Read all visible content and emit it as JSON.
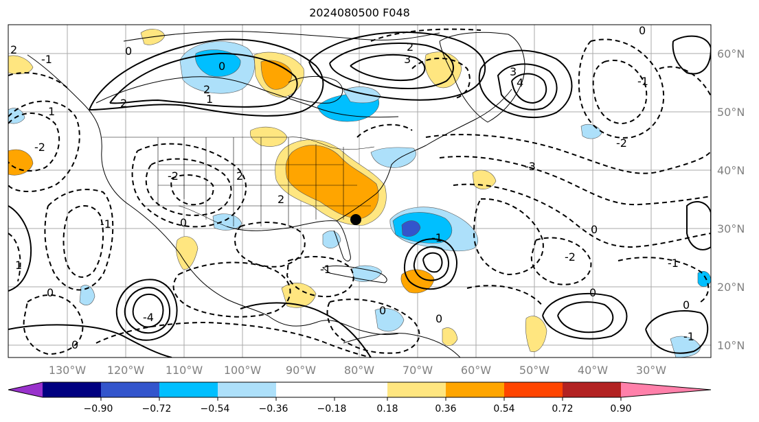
{
  "title": "2024080500 F048",
  "latitude_labels": [
    "60°N",
    "50°N",
    "40°N",
    "30°N",
    "20°N",
    "10°N"
  ],
  "longitude_labels": [
    "130°W",
    "120°W",
    "110°W",
    "100°W",
    "90°W",
    "80°W",
    "70°W",
    "60°W",
    "50°W",
    "40°W",
    "30°W"
  ],
  "colorbar": {
    "tick_labels": [
      "−0.90",
      "−0.72",
      "−0.54",
      "−0.36",
      "−0.18",
      "0.18",
      "0.36",
      "0.54",
      "0.72",
      "0.90"
    ],
    "colors": [
      "#9932cc",
      "#000080",
      "#3355cc",
      "#00bfff",
      "#ade0fa",
      "#ffffff",
      "#ffe680",
      "#ffa500",
      "#ff4500",
      "#b22222",
      "#ff80aa"
    ]
  },
  "contour_labels": [
    "2",
    "0",
    "1",
    "2",
    "-1",
    "0",
    "3",
    "2",
    "4",
    "3",
    "1",
    "0",
    "-2",
    "-1",
    "2",
    "-3",
    "0",
    "-1",
    "-2",
    "-1",
    "0",
    "-2",
    "-4",
    "0",
    "0",
    "-1",
    "-2",
    "0",
    "-1",
    "0",
    "-1",
    "0",
    "1",
    "2",
    "2",
    "0"
  ],
  "storm_marker": "storm-center"
}
